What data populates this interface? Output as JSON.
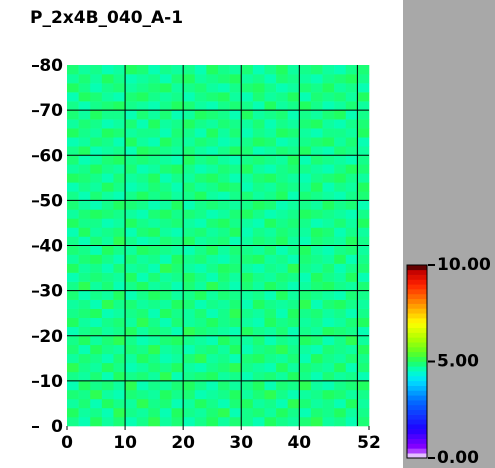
{
  "chart_data": {
    "type": "heatmap",
    "title": "P_2x4B_040_A-1",
    "xlim": [
      0,
      52
    ],
    "ylim": [
      0,
      80
    ],
    "xticks": [
      0,
      10,
      20,
      30,
      40,
      52
    ],
    "yticks": [
      0,
      10,
      20,
      30,
      40,
      50,
      60,
      70,
      80
    ],
    "grid_x": [
      10,
      20,
      30,
      40,
      50
    ],
    "grid_y": [
      10,
      20,
      30,
      40,
      50,
      60,
      70
    ],
    "colorbar": {
      "lim": [
        0,
        10
      ],
      "ticks": [
        {
          "value": 0,
          "label": "0.00"
        },
        {
          "value": 5,
          "label": "5.00"
        },
        {
          "value": 10,
          "label": "10.00"
        }
      ]
    },
    "values": [
      [
        4.8,
        4.6,
        5.0,
        4.7,
        4.9,
        4.6,
        4.8,
        5.1,
        4.7,
        4.9,
        4.6,
        4.8,
        5.0,
        4.7,
        4.9,
        4.8,
        4.6,
        5.0,
        4.8,
        4.7,
        4.9,
        5.1,
        4.7,
        4.8,
        4.6,
        4.9
      ],
      [
        5.0,
        4.7,
        4.8,
        4.6,
        5.1,
        4.8,
        4.7,
        4.9,
        4.6,
        5.0,
        4.8,
        4.7,
        4.9,
        5.1,
        4.6,
        4.8,
        4.9,
        4.7,
        5.0,
        4.8,
        4.6,
        4.9,
        4.8,
        5.0,
        4.7,
        4.8
      ],
      [
        4.7,
        4.9,
        4.6,
        5.0,
        4.8,
        4.7,
        5.1,
        4.8,
        4.9,
        4.6,
        4.7,
        5.0,
        4.8,
        4.6,
        4.9,
        5.0,
        4.7,
        4.8,
        4.6,
        5.1,
        4.9,
        4.7,
        4.8,
        4.6,
        5.0,
        4.7
      ],
      [
        4.9,
        4.8,
        5.1,
        4.7,
        4.6,
        4.9,
        4.8,
        4.7,
        5.0,
        4.8,
        4.9,
        4.6,
        4.7,
        4.8,
        5.0,
        4.7,
        4.9,
        5.1,
        4.8,
        4.6,
        4.7,
        4.8,
        5.0,
        4.9,
        4.7,
        4.8
      ],
      [
        4.6,
        5.0,
        4.8,
        4.9,
        4.7,
        5.1,
        4.6,
        4.8,
        4.7,
        4.9,
        5.0,
        4.8,
        4.6,
        4.9,
        4.7,
        4.8,
        5.0,
        4.6,
        4.9,
        4.8,
        5.1,
        4.7,
        4.6,
        4.8,
        4.9,
        5.0
      ],
      [
        4.8,
        4.7,
        4.9,
        4.6,
        5.0,
        4.8,
        4.9,
        4.7,
        5.1,
        4.6,
        4.8,
        4.9,
        5.0,
        4.7,
        4.8,
        4.6,
        4.8,
        4.9,
        4.7,
        5.0,
        4.8,
        4.6,
        4.9,
        4.7,
        4.8,
        4.6
      ],
      [
        5.1,
        4.8,
        4.7,
        5.0,
        4.8,
        4.6,
        4.7,
        4.9,
        4.8,
        5.0,
        4.7,
        4.6,
        4.8,
        4.9,
        5.1,
        4.8,
        4.7,
        4.6,
        5.0,
        4.7,
        4.9,
        4.8,
        4.7,
        5.0,
        4.6,
        4.9
      ],
      [
        4.7,
        4.9,
        4.8,
        4.6,
        4.9,
        4.7,
        5.0,
        4.8,
        4.6,
        4.7,
        4.9,
        5.1,
        4.7,
        4.8,
        4.6,
        4.9,
        5.0,
        4.8,
        4.7,
        4.9,
        4.6,
        5.0,
        4.8,
        4.7,
        4.9,
        4.8
      ],
      [
        4.9,
        4.6,
        5.0,
        4.8,
        4.7,
        4.9,
        4.8,
        5.1,
        4.7,
        4.8,
        4.6,
        4.8,
        4.9,
        4.7,
        5.0,
        4.6,
        4.8,
        4.9,
        5.1,
        4.8,
        4.7,
        4.6,
        4.9,
        4.8,
        4.7,
        5.0
      ],
      [
        4.8,
        5.0,
        4.7,
        4.9,
        5.1,
        4.8,
        4.6,
        4.7,
        4.9,
        5.0,
        4.8,
        4.7,
        4.6,
        5.0,
        4.8,
        4.7,
        4.9,
        4.6,
        4.8,
        4.7,
        5.0,
        4.9,
        4.6,
        4.8,
        5.1,
        4.7
      ],
      [
        4.6,
        4.8,
        4.9,
        4.7,
        4.8,
        5.0,
        4.7,
        4.9,
        4.8,
        4.6,
        5.1,
        4.9,
        4.8,
        4.7,
        4.6,
        5.0,
        4.8,
        4.7,
        4.9,
        4.6,
        4.8,
        4.7,
        5.0,
        4.9,
        4.8,
        4.6
      ],
      [
        5.0,
        4.7,
        4.6,
        4.8,
        4.9,
        4.7,
        5.1,
        4.8,
        4.6,
        4.9,
        4.7,
        4.8,
        5.0,
        4.8,
        4.9,
        4.7,
        4.6,
        5.0,
        4.8,
        4.9,
        4.7,
        4.8,
        4.6,
        4.7,
        4.9,
        5.0
      ],
      [
        4.8,
        4.9,
        5.0,
        4.6,
        4.7,
        4.8,
        4.9,
        4.6,
        5.0,
        4.8,
        4.7,
        4.9,
        4.6,
        4.8,
        5.1,
        4.8,
        4.7,
        4.9,
        4.6,
        5.0,
        4.8,
        4.9,
        4.7,
        4.8,
        4.6,
        4.8
      ],
      [
        4.7,
        4.8,
        4.6,
        5.1,
        4.8,
        4.9,
        4.7,
        4.8,
        4.7,
        5.0,
        4.9,
        4.6,
        4.8,
        4.7,
        4.9,
        4.6,
        5.0,
        4.8,
        4.7,
        4.8,
        5.1,
        4.6,
        4.9,
        5.0,
        4.8,
        4.7
      ],
      [
        4.9,
        4.6,
        4.8,
        4.7,
        5.0,
        4.6,
        4.8,
        5.0,
        4.9,
        4.7,
        4.8,
        5.0,
        4.7,
        4.9,
        4.8,
        4.7,
        4.8,
        4.6,
        5.0,
        4.7,
        4.9,
        4.8,
        4.7,
        4.6,
        4.9,
        4.8
      ],
      [
        4.8,
        5.1,
        4.7,
        4.9,
        4.6,
        4.8,
        5.0,
        4.7,
        4.8,
        4.6,
        4.9,
        4.7,
        5.1,
        4.8,
        4.6,
        4.9,
        4.7,
        5.0,
        4.8,
        4.6,
        4.7,
        4.9,
        5.0,
        4.8,
        4.7,
        4.9
      ],
      [
        4.6,
        4.8,
        4.9,
        4.8,
        4.7,
        5.0,
        4.6,
        4.9,
        4.7,
        4.8,
        5.0,
        4.8,
        4.6,
        4.9,
        4.7,
        5.0,
        4.8,
        4.7,
        4.9,
        4.8,
        4.6,
        5.0,
        4.8,
        4.7,
        5.0,
        4.6
      ],
      [
        5.0,
        4.7,
        4.8,
        4.6,
        4.9,
        4.7,
        4.8,
        4.6,
        5.1,
        4.9,
        4.7,
        4.6,
        4.8,
        5.0,
        4.9,
        4.7,
        4.6,
        4.8,
        4.7,
        5.1,
        4.8,
        4.7,
        4.9,
        4.6,
        4.8,
        4.9
      ],
      [
        4.7,
        4.9,
        5.0,
        4.8,
        4.6,
        4.9,
        4.7,
        4.8,
        4.6,
        5.0,
        4.8,
        4.9,
        4.7,
        4.6,
        4.8,
        4.9,
        5.0,
        4.7,
        4.8,
        4.6,
        4.9,
        4.8,
        4.7,
        5.0,
        4.6,
        4.8
      ],
      [
        4.9,
        4.8,
        4.6,
        5.0,
        4.8,
        4.7,
        5.0,
        4.9,
        4.8,
        4.7,
        4.6,
        4.8,
        5.0,
        4.7,
        4.9,
        4.8,
        4.7,
        4.9,
        4.6,
        4.8,
        5.0,
        4.7,
        4.6,
        4.8,
        4.9,
        4.7
      ],
      [
        4.8,
        4.6,
        4.9,
        4.7,
        5.1,
        4.8,
        4.6,
        4.7,
        4.9,
        4.8,
        5.0,
        4.7,
        4.8,
        4.9,
        4.6,
        4.7,
        4.9,
        4.8,
        5.0,
        4.7,
        4.6,
        4.9,
        4.8,
        4.7,
        5.0,
        4.8
      ],
      [
        4.6,
        5.0,
        4.7,
        4.8,
        4.9,
        4.6,
        4.9,
        5.0,
        4.7,
        4.6,
        4.8,
        4.9,
        4.7,
        4.8,
        5.0,
        4.6,
        4.8,
        4.7,
        4.9,
        4.8,
        4.7,
        5.0,
        4.9,
        4.6,
        4.8,
        4.7
      ],
      [
        5.0,
        4.8,
        4.8,
        4.6,
        4.7,
        5.0,
        4.8,
        4.7,
        4.8,
        4.9,
        4.7,
        4.6,
        4.9,
        5.0,
        4.8,
        4.7,
        4.6,
        5.0,
        4.8,
        4.9,
        4.8,
        4.6,
        4.7,
        4.9,
        4.7,
        5.0
      ],
      [
        4.7,
        4.9,
        5.0,
        4.9,
        4.8,
        4.7,
        4.6,
        4.9,
        5.0,
        4.8,
        4.9,
        4.8,
        4.6,
        4.7,
        4.9,
        5.0,
        4.8,
        4.6,
        4.7,
        4.8,
        5.0,
        4.9,
        4.8,
        4.7,
        4.6,
        4.8
      ],
      [
        4.9,
        4.7,
        4.6,
        4.8,
        5.0,
        4.9,
        4.8,
        4.6,
        4.7,
        5.0,
        4.6,
        4.8,
        4.9,
        4.8,
        4.7,
        4.8,
        5.0,
        4.9,
        4.6,
        4.7,
        4.8,
        4.7,
        5.0,
        4.8,
        4.9,
        4.6
      ],
      [
        4.8,
        4.6,
        4.9,
        4.7,
        4.6,
        4.8,
        5.0,
        4.8,
        4.9,
        4.7,
        4.8,
        5.0,
        4.7,
        4.6,
        4.8,
        4.9,
        4.7,
        4.8,
        5.0,
        4.6,
        4.9,
        4.8,
        4.7,
        4.6,
        4.8,
        4.9
      ],
      [
        4.6,
        4.8,
        4.7,
        5.0,
        4.8,
        4.6,
        4.7,
        4.9,
        4.8,
        4.6,
        4.9,
        4.7,
        4.8,
        5.0,
        4.9,
        4.6,
        4.8,
        4.7,
        4.9,
        4.8,
        4.7,
        5.0,
        4.6,
        4.8,
        4.7,
        5.0
      ],
      [
        5.0,
        4.9,
        4.8,
        4.6,
        4.9,
        4.7,
        4.8,
        5.0,
        4.6,
        4.8,
        4.7,
        4.9,
        5.0,
        4.8,
        4.6,
        4.7,
        4.9,
        5.0,
        4.8,
        4.7,
        4.6,
        4.8,
        4.9,
        5.0,
        4.8,
        4.7
      ],
      [
        4.7,
        4.8,
        5.0,
        4.8,
        4.7,
        4.9,
        4.6,
        4.7,
        4.9,
        5.0,
        4.8,
        4.6,
        4.7,
        4.9,
        4.8,
        5.0,
        4.7,
        4.6,
        4.8,
        4.9,
        4.8,
        4.7,
        4.6,
        4.8,
        5.0,
        4.9
      ],
      [
        4.9,
        4.6,
        4.7,
        4.9,
        5.0,
        4.8,
        4.9,
        4.8,
        4.7,
        4.6,
        5.0,
        4.8,
        4.9,
        4.7,
        4.6,
        4.8,
        4.9,
        4.8,
        4.7,
        5.0,
        4.6,
        4.9,
        4.8,
        4.7,
        4.6,
        4.8
      ],
      [
        4.8,
        5.0,
        4.6,
        4.7,
        4.8,
        4.6,
        5.0,
        4.9,
        4.8,
        4.7,
        4.9,
        4.7,
        4.6,
        4.8,
        5.0,
        4.9,
        4.6,
        4.7,
        4.9,
        4.8,
        5.0,
        4.7,
        4.6,
        4.9,
        4.8,
        4.7
      ],
      [
        4.6,
        4.7,
        4.9,
        4.8,
        4.6,
        5.0,
        4.7,
        4.6,
        5.0,
        4.8,
        4.7,
        4.9,
        4.8,
        4.6,
        4.7,
        4.8,
        5.0,
        4.9,
        4.6,
        4.7,
        4.8,
        4.9,
        5.0,
        4.7,
        4.9,
        4.6
      ],
      [
        5.0,
        4.8,
        4.7,
        5.0,
        4.9,
        4.7,
        4.8,
        4.8,
        4.6,
        4.9,
        4.8,
        4.6,
        5.0,
        4.7,
        4.9,
        4.6,
        4.8,
        4.7,
        5.0,
        4.9,
        4.7,
        4.6,
        4.8,
        4.8,
        4.7,
        5.0
      ],
      [
        4.7,
        4.9,
        4.8,
        4.6,
        4.7,
        4.9,
        4.6,
        5.0,
        4.7,
        4.8,
        5.0,
        4.8,
        4.7,
        4.9,
        4.8,
        4.7,
        4.9,
        4.6,
        4.8,
        4.7,
        4.9,
        5.0,
        4.7,
        4.6,
        4.8,
        4.9
      ],
      [
        4.9,
        4.7,
        5.0,
        4.8,
        4.8,
        4.6,
        4.9,
        4.7,
        4.9,
        4.6,
        4.7,
        5.0,
        4.9,
        4.8,
        4.6,
        5.0,
        4.7,
        4.8,
        4.9,
        4.6,
        4.8,
        4.7,
        4.9,
        5.0,
        4.6,
        4.8
      ],
      [
        4.8,
        4.6,
        4.8,
        4.9,
        5.0,
        4.8,
        4.7,
        4.6,
        4.8,
        5.0,
        4.9,
        4.7,
        4.6,
        4.8,
        4.9,
        4.8,
        4.6,
        5.0,
        4.7,
        4.8,
        5.0,
        4.8,
        4.6,
        4.7,
        4.9,
        4.7
      ],
      [
        4.6,
        5.0,
        4.9,
        4.7,
        4.6,
        4.9,
        5.0,
        4.8,
        4.7,
        4.8,
        4.6,
        4.8,
        4.9,
        5.0,
        4.7,
        4.6,
        4.9,
        4.7,
        4.8,
        5.0,
        4.6,
        4.9,
        4.8,
        4.9,
        4.7,
        5.0
      ],
      [
        5.0,
        4.8,
        4.6,
        4.8,
        4.9,
        4.7,
        4.8,
        4.9,
        5.0,
        4.7,
        4.8,
        4.9,
        4.7,
        4.6,
        4.8,
        4.9,
        5.0,
        4.8,
        4.6,
        4.7,
        4.9,
        4.8,
        5.0,
        4.7,
        4.8,
        4.6
      ],
      [
        4.7,
        4.9,
        4.7,
        5.0,
        4.8,
        4.6,
        4.7,
        4.8,
        4.6,
        4.9,
        5.0,
        4.7,
        4.8,
        4.9,
        5.0,
        4.7,
        4.8,
        4.6,
        4.9,
        4.8,
        4.7,
        4.6,
        4.8,
        4.9,
        5.0,
        4.8
      ],
      [
        4.9,
        4.7,
        4.8,
        4.6,
        4.7,
        5.0,
        4.9,
        4.6,
        4.8,
        4.7,
        4.8,
        4.6,
        5.0,
        4.8,
        4.7,
        4.9,
        4.6,
        4.8,
        5.0,
        4.7,
        4.8,
        4.9,
        4.7,
        4.6,
        4.8,
        4.9
      ]
    ]
  }
}
